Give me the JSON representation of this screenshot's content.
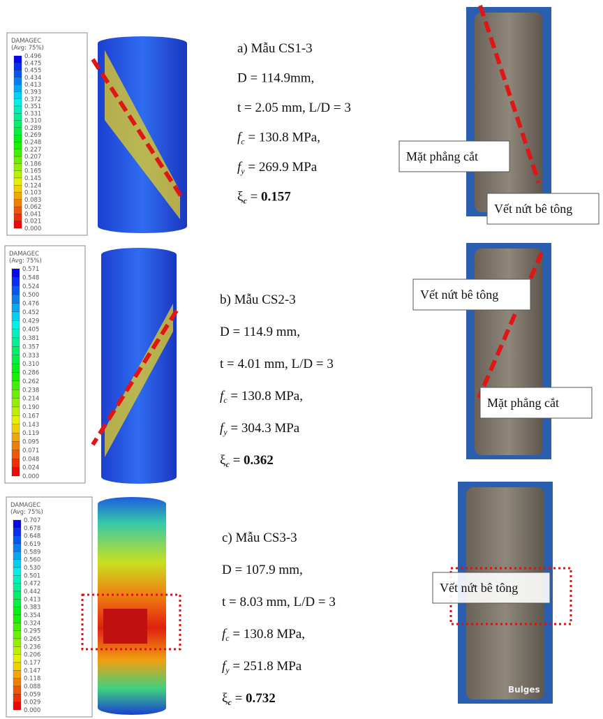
{
  "panels": [
    {
      "legend": {
        "title": "DAMAGEC",
        "subtitle": "(Avg: 75%)",
        "levels": [
          "0.496",
          "0.475",
          "0.455",
          "0.434",
          "0.413",
          "0.393",
          "0.372",
          "0.351",
          "0.331",
          "0.310",
          "0.289",
          "0.269",
          "0.248",
          "0.227",
          "0.207",
          "0.186",
          "0.165",
          "0.145",
          "0.124",
          "0.103",
          "0.083",
          "0.062",
          "0.041",
          "0.021",
          "0.000"
        ]
      },
      "lines": [
        "a) Mẫu CS1-3",
        "D = 114.9mm,",
        "t = 2.05 mm, L/D = 3"
      ],
      "fc": [
        "f",
        "c",
        " = 130.8 MPa,"
      ],
      "fy": [
        "f",
        "y",
        " = 269.9 MPa"
      ],
      "xi": [
        "ξ",
        "c",
        " = ",
        "0.157"
      ],
      "callouts": [
        "Mặt phẳng cắt",
        "Vết nứt bê tông"
      ]
    },
    {
      "legend": {
        "title": "DAMAGEC",
        "subtitle": "(Avg: 75%)",
        "levels": [
          "0.571",
          "0.548",
          "0.524",
          "0.500",
          "0.476",
          "0.452",
          "0.429",
          "0.405",
          "0.381",
          "0.357",
          "0.333",
          "0.310",
          "0.286",
          "0.262",
          "0.238",
          "0.214",
          "0.190",
          "0.167",
          "0.143",
          "0.119",
          "0.095",
          "0.071",
          "0.048",
          "0.024",
          "0.000"
        ]
      },
      "lines": [
        "b) Mẫu CS2-3",
        "D = 114.9 mm,",
        "t = 4.01 mm, L/D = 3"
      ],
      "fc": [
        "f",
        "c",
        " = 130.8 MPa,"
      ],
      "fy": [
        "f",
        "y",
        " = 304.3 MPa"
      ],
      "xi": [
        "ξ",
        "c",
        " = ",
        "0.362"
      ],
      "callouts": [
        "Vết nứt bê tông",
        "Mặt phẳng cắt"
      ]
    },
    {
      "legend": {
        "title": "DAMAGEC",
        "subtitle": "(Avg: 75%)",
        "levels": [
          "0.707",
          "0.678",
          "0.648",
          "0.619",
          "0.589",
          "0.560",
          "0.530",
          "0.501",
          "0.472",
          "0.442",
          "0.413",
          "0.383",
          "0.354",
          "0.324",
          "0.295",
          "0.265",
          "0.236",
          "0.206",
          "0.177",
          "0.147",
          "0.118",
          "0.088",
          "0.059",
          "0.029",
          "0.000"
        ]
      },
      "lines": [
        "c) Mẫu CS3-3",
        "D = 107.9 mm,",
        "t = 8.03 mm, L/D = 3"
      ],
      "fc": [
        "f",
        "c",
        " = 130.8 MPa,"
      ],
      "fy": [
        "f",
        "y",
        " = 251.8 MPa"
      ],
      "xi": [
        "ξ",
        "c",
        " = ",
        "0.732"
      ],
      "callouts": [
        "Vết nứt bê tông",
        "Bulges"
      ]
    }
  ]
}
